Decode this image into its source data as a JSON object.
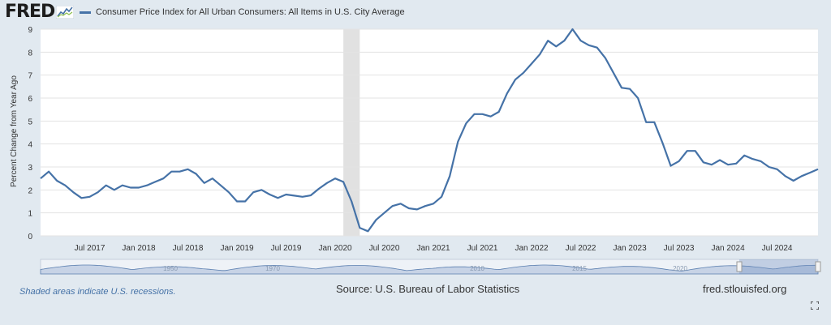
{
  "header": {
    "logo_text": "FRED",
    "logo_icon": "fred-graph-logo-icon",
    "legend_label": "Consumer Price Index for All Urban Consumers: All Items in U.S. City Average"
  },
  "footer": {
    "recession_note": "Shaded areas indicate U.S. recessions.",
    "source": "Source: U.S. Bureau of Labor Statistics",
    "site": "fred.stlouisfed.org",
    "fullscreen_icon": "fullscreen-icon"
  },
  "colors": {
    "background": "#e1e9f0",
    "plot_background": "#ffffff",
    "series": "#4572a7",
    "recession": "#e1e1e1",
    "navigator_fill": "#c7d3e6",
    "navigator_line": "#5b7fb0"
  },
  "chart_data": {
    "type": "line",
    "title": "",
    "xlabel": "",
    "ylabel": "Percent Change from Year Ago",
    "ylim": [
      0,
      9
    ],
    "yticks": [
      0,
      1,
      2,
      3,
      4,
      5,
      6,
      7,
      8,
      9
    ],
    "xlim": [
      "2017-01",
      "2024-12"
    ],
    "xticks": [
      {
        "date": "2017-07",
        "label": "Jul 2017"
      },
      {
        "date": "2018-01",
        "label": "Jan 2018"
      },
      {
        "date": "2018-07",
        "label": "Jul 2018"
      },
      {
        "date": "2019-01",
        "label": "Jan 2019"
      },
      {
        "date": "2019-07",
        "label": "Jul 2019"
      },
      {
        "date": "2020-01",
        "label": "Jan 2020"
      },
      {
        "date": "2020-07",
        "label": "Jul 2020"
      },
      {
        "date": "2021-01",
        "label": "Jan 2021"
      },
      {
        "date": "2021-07",
        "label": "Jul 2021"
      },
      {
        "date": "2022-01",
        "label": "Jan 2022"
      },
      {
        "date": "2022-07",
        "label": "Jul 2022"
      },
      {
        "date": "2023-01",
        "label": "Jan 2023"
      },
      {
        "date": "2023-07",
        "label": "Jul 2023"
      },
      {
        "date": "2024-01",
        "label": "Jan 2024"
      },
      {
        "date": "2024-07",
        "label": "Jul 2024"
      }
    ],
    "grid": "horizontal",
    "legend": "top-left",
    "recessions": [
      {
        "start": "2020-02",
        "end": "2020-04"
      }
    ],
    "series": [
      {
        "x": [
          "2017-01",
          "2017-02",
          "2017-03",
          "2017-04",
          "2017-05",
          "2017-06",
          "2017-07",
          "2017-08",
          "2017-09",
          "2017-10",
          "2017-11",
          "2017-12",
          "2018-01",
          "2018-02",
          "2018-03",
          "2018-04",
          "2018-05",
          "2018-06",
          "2018-07",
          "2018-08",
          "2018-09",
          "2018-10",
          "2018-11",
          "2018-12",
          "2019-01",
          "2019-02",
          "2019-03",
          "2019-04",
          "2019-05",
          "2019-06",
          "2019-07",
          "2019-08",
          "2019-09",
          "2019-10",
          "2019-11",
          "2019-12",
          "2020-01",
          "2020-02",
          "2020-03",
          "2020-04",
          "2020-05",
          "2020-06",
          "2020-07",
          "2020-08",
          "2020-09",
          "2020-10",
          "2020-11",
          "2020-12",
          "2021-01",
          "2021-02",
          "2021-03",
          "2021-04",
          "2021-05",
          "2021-06",
          "2021-07",
          "2021-08",
          "2021-09",
          "2021-10",
          "2021-11",
          "2021-12",
          "2022-01",
          "2022-02",
          "2022-03",
          "2022-04",
          "2022-05",
          "2022-06",
          "2022-07",
          "2022-08",
          "2022-09",
          "2022-10",
          "2022-11",
          "2022-12",
          "2023-01",
          "2023-02",
          "2023-03",
          "2023-04",
          "2023-05",
          "2023-06",
          "2023-07",
          "2023-08",
          "2023-09",
          "2023-10",
          "2023-11",
          "2023-12",
          "2024-01",
          "2024-02",
          "2024-03",
          "2024-04",
          "2024-05",
          "2024-06",
          "2024-07",
          "2024-08",
          "2024-09",
          "2024-10",
          "2024-11",
          "2024-12"
        ],
        "values": [
          2.5,
          2.8,
          2.4,
          2.2,
          1.9,
          1.65,
          1.7,
          1.9,
          2.2,
          2.0,
          2.2,
          2.1,
          2.1,
          2.2,
          2.35,
          2.5,
          2.8,
          2.8,
          2.9,
          2.7,
          2.3,
          2.5,
          2.2,
          1.9,
          1.5,
          1.5,
          1.9,
          2.0,
          1.8,
          1.65,
          1.8,
          1.75,
          1.7,
          1.76,
          2.05,
          2.3,
          2.5,
          2.35,
          1.5,
          0.35,
          0.2,
          0.7,
          1.0,
          1.3,
          1.4,
          1.2,
          1.15,
          1.3,
          1.4,
          1.7,
          2.6,
          4.1,
          4.9,
          5.3,
          5.3,
          5.2,
          5.4,
          6.2,
          6.8,
          7.1,
          7.5,
          7.9,
          8.5,
          8.25,
          8.5,
          9.0,
          8.5,
          8.3,
          8.2,
          7.75,
          7.1,
          6.45,
          6.4,
          6.0,
          4.95,
          4.95,
          4.05,
          3.05,
          3.25,
          3.7,
          3.7,
          3.2,
          3.1,
          3.3,
          3.1,
          3.15,
          3.5,
          3.35,
          3.25,
          3.0,
          2.9,
          2.6,
          2.4,
          2.6,
          2.75,
          2.9
        ]
      }
    ]
  },
  "navigator": {
    "labels": [
      "1950",
      "1970",
      "2010",
      "2015",
      "2020"
    ]
  }
}
